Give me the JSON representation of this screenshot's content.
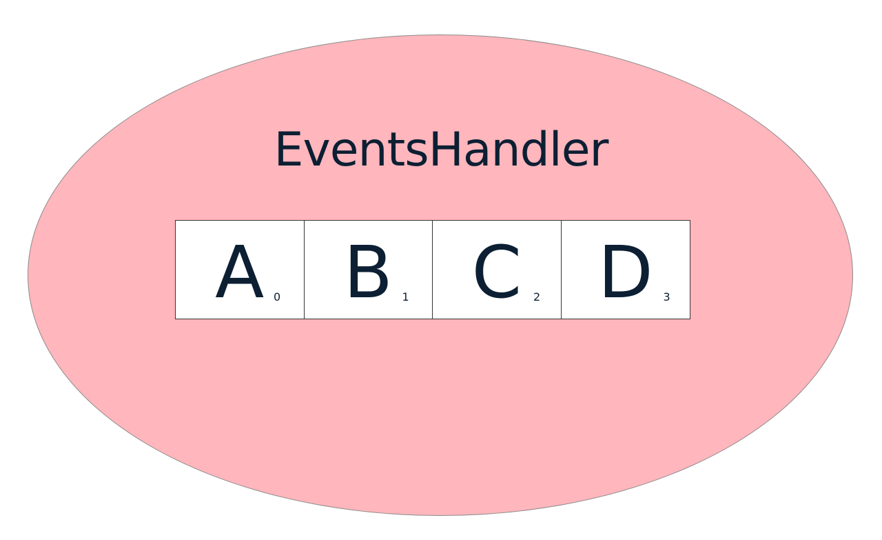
{
  "colors": {
    "background": "#ffffff",
    "ellipse_fill": "#ffb6bc",
    "text": "#0c1f33"
  },
  "diagram": {
    "title": "EventsHandler",
    "cells": [
      {
        "letter": "A",
        "index": "0"
      },
      {
        "letter": "B",
        "index": "1"
      },
      {
        "letter": "C",
        "index": "2"
      },
      {
        "letter": "D",
        "index": "3"
      }
    ]
  }
}
